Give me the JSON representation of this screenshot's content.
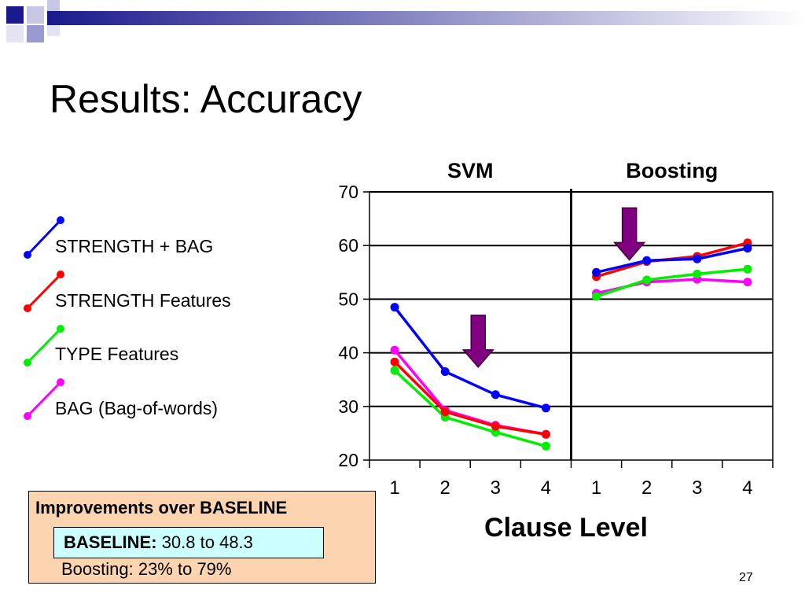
{
  "slide": {
    "title": "Results: Accuracy",
    "page_number": "27"
  },
  "legend": {
    "items": [
      {
        "label": "STRENGTH + BAG",
        "color": "#0000ff"
      },
      {
        "label": "STRENGTH Features",
        "color": "#ff0000"
      },
      {
        "label": "TYPE Features",
        "color": "#00ee00"
      },
      {
        "label": "BAG (Bag-of-words)",
        "color": "#ff00ff"
      }
    ]
  },
  "chart_data": {
    "type": "line",
    "panels": [
      "SVM",
      "Boosting"
    ],
    "categories": [
      "1",
      "2",
      "3",
      "4"
    ],
    "xlabel": "Clause Level",
    "ylabel": "",
    "ylim": [
      20,
      70
    ],
    "yticks": [
      "20",
      "30",
      "40",
      "50",
      "60",
      "70"
    ],
    "grid": true,
    "series": [
      {
        "name": "STRENGTH + BAG",
        "color": "#0000ff",
        "svm": [
          48.5,
          36.5,
          32.2,
          29.7
        ],
        "boosting": [
          55.0,
          57.2,
          57.5,
          59.5
        ]
      },
      {
        "name": "STRENGTH Features",
        "color": "#ff0000",
        "svm": [
          38.3,
          29.0,
          26.3,
          24.8
        ],
        "boosting": [
          54.2,
          57.0,
          58.0,
          60.5
        ]
      },
      {
        "name": "TYPE Features",
        "color": "#00ee00",
        "svm": [
          36.7,
          28.0,
          25.2,
          22.6
        ],
        "boosting": [
          50.5,
          53.6,
          54.7,
          55.6
        ]
      },
      {
        "name": "BAG (Bag-of-words)",
        "color": "#ff00ff",
        "svm": [
          40.5,
          29.3,
          26.5,
          24.8
        ],
        "boosting": [
          51.1,
          53.2,
          53.7,
          53.2
        ]
      }
    ],
    "annotations": [
      {
        "panel": "SVM",
        "between_categories": [
          "2",
          "3"
        ],
        "value": 40,
        "type": "arrow-down",
        "color": "#800080"
      },
      {
        "panel": "Boosting",
        "between_categories": [
          "1",
          "2"
        ],
        "value": 60,
        "type": "arrow-down",
        "color": "#800080"
      }
    ]
  },
  "improvements": {
    "title": "Improvements over BASELINE",
    "baseline_label": "BASELINE:",
    "baseline_value": "30.8 to 48.3",
    "boosting_text": "Boosting: 23% to 79%"
  }
}
